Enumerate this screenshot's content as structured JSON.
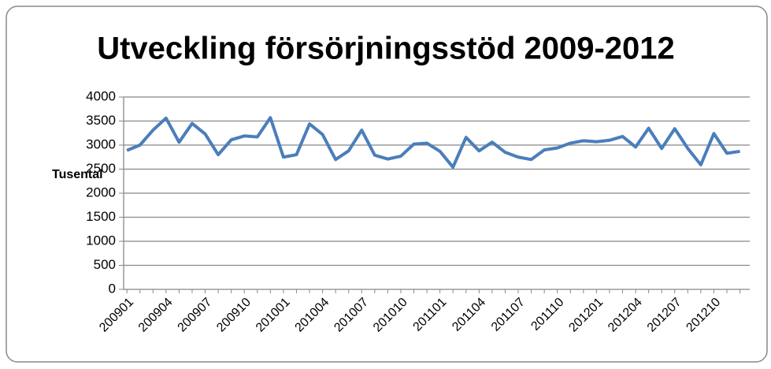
{
  "chart_data": {
    "type": "line",
    "title": "Utveckling försörjningsstöd 2009-2012",
    "y_label": "Tusental",
    "categories": [
      "200901",
      null,
      null,
      "200904",
      null,
      null,
      "200907",
      null,
      null,
      "200910",
      null,
      null,
      "201001",
      null,
      null,
      "201004",
      null,
      null,
      "201007",
      null,
      null,
      "201010",
      null,
      null,
      "201101",
      null,
      null,
      "201104",
      null,
      null,
      "201107",
      null,
      null,
      "201110",
      null,
      null,
      "201201",
      null,
      null,
      "201204",
      null,
      null,
      "201207",
      null,
      null,
      "201210",
      null,
      null
    ],
    "series": [
      {
        "name": "Försörjningsstöd",
        "color": "#4a7ebb",
        "values": [
          2890,
          3000,
          3310,
          3560,
          3060,
          3450,
          3230,
          2800,
          3110,
          3190,
          3170,
          3570,
          2750,
          2800,
          3440,
          3220,
          2700,
          2880,
          3310,
          2790,
          2710,
          2770,
          3020,
          3040,
          2870,
          2540,
          3160,
          2880,
          3060,
          2850,
          2750,
          2700,
          2900,
          2940,
          3040,
          3090,
          3070,
          3100,
          3180,
          2960,
          3350,
          2930,
          3340,
          2930,
          2590,
          3240,
          2830,
          2870
        ]
      }
    ],
    "ylim": [
      0,
      4000
    ],
    "yticks": [
      0,
      500,
      1000,
      1500,
      2000,
      2500,
      3000,
      3500,
      4000
    ],
    "grid": true
  }
}
